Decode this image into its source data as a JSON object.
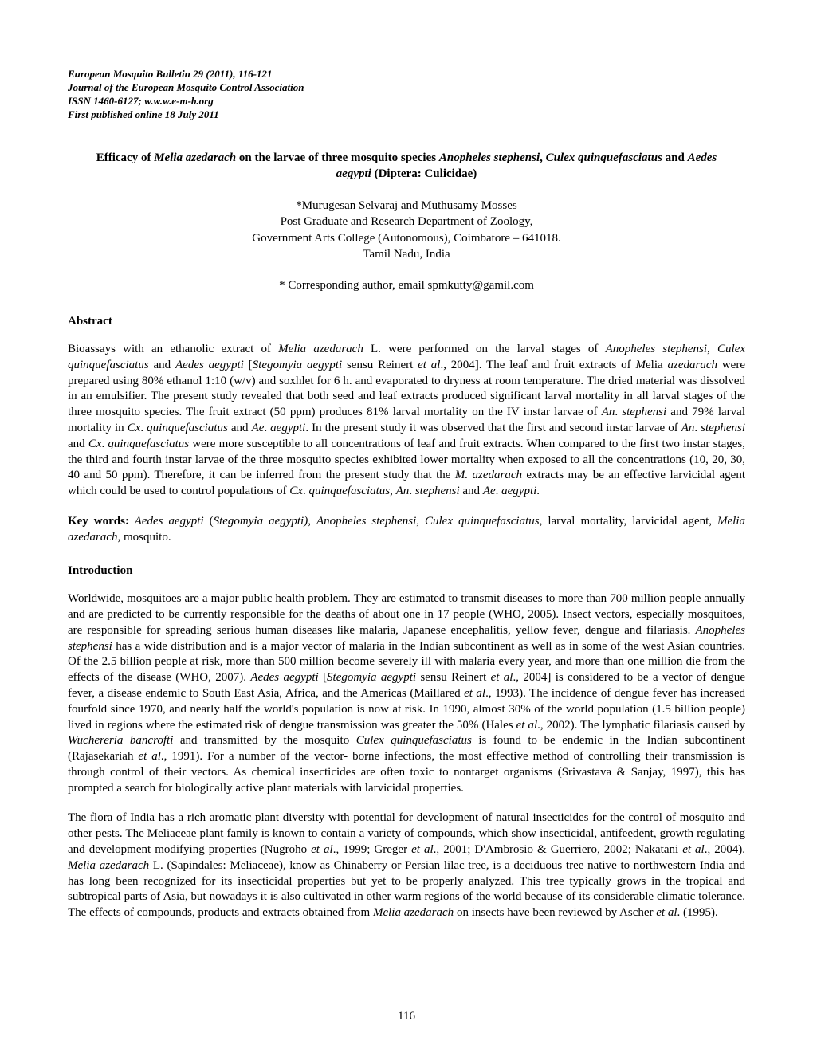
{
  "header": {
    "line1": "European Mosquito Bulletin 29 (2011), 116-121",
    "line2": "Journal of the European Mosquito Control Association",
    "line3": "ISSN 1460-6127; w.w.w.e-m-b.org",
    "line4": "First published online 18 July 2011"
  },
  "title": {
    "prefix": "Efficacy of ",
    "species1": "Melia azedarach",
    "mid1": " on the larvae of three mosquito species ",
    "species2": "Anopheles stephensi",
    "mid2": ", ",
    "species3": "Culex quinquefasciatus",
    "mid3": " and ",
    "species4": "Aedes aegypti",
    "suffix": " (Diptera: Culicidae)"
  },
  "authors": {
    "names": "*Murugesan Selvaraj and Muthusamy Mosses",
    "dept": "Post Graduate and Research Department of Zoology,",
    "college": "Government Arts College (Autonomous), Coimbatore – 641018.",
    "location": "Tamil Nadu, India"
  },
  "corresponding": "* Corresponding author, email spmkutty@gamil.com",
  "abstract": {
    "heading": "Abstract",
    "p1": "Bioassays with an ethanolic extract of ",
    "s1": "Melia azedarach",
    "p2": " L. were performed on the larval stages of ",
    "s2": "Anopheles stephensi",
    "p3": ", ",
    "s3": "Culex quinquefasciatus",
    "p4": " and ",
    "s4": "Aedes aegypti",
    "p5": " [",
    "s5": "Stegomyia aegypti",
    "p6": " sensu Reinert ",
    "s6": "et al",
    "p7": "., 2004]. The leaf and fruit extracts of ",
    "s7": "M",
    "p7a": "elia ",
    "s7a": "azedarach",
    "p8": " were prepared using 80% ethanol 1:10 (w/v) and soxhlet for 6 h. and evaporated to dryness at room temperature. The dried material was dissolved in an emulsifier. The present study revealed that both seed and leaf extracts produced significant larval mortality in all larval stages of the three mosquito species. The fruit extract (50 ppm) produces 81% larval mortality on the IV instar larvae of ",
    "s8": "An",
    "p9": ". ",
    "s9": "stephensi",
    "p10": " and 79% larval mortality in ",
    "s10": "Cx",
    "p11": ". ",
    "s11": "quinquefasciatus",
    "p12": " and ",
    "s12": "Ae",
    "p13": ". ",
    "s13": "aegypti",
    "p14": ". In the present study it was observed that the first and second instar larvae of ",
    "s14": "An",
    "p15": ". ",
    "s15": "stephensi",
    "p16": " and ",
    "s16": "Cx",
    "p17": ". ",
    "s17": "quinquefasciatus",
    "p18": " were more susceptible to all concentrations of leaf and fruit extracts. When compared to the  first two instar stages, the third and fourth instar larvae of the three mosquito species exhibited lower mortality when exposed to all the concentrations (10, 20, 30, 40 and 50 ppm). Therefore, it can be inferred from the present study that the ",
    "s18": "M. azedarach",
    "p19": " extracts may be an effective larvicidal agent which could be used to control populations of ",
    "s19": "Cx",
    "p20": ". ",
    "s20": "quinquefasciatus",
    "p21": ", ",
    "s21": "An",
    "p22": ". ",
    "s22": "stephensi",
    "p23": " and ",
    "s23": "Ae",
    "p24": ". ",
    "s24": "aegypti",
    "p25": "."
  },
  "keywords": {
    "label": "Key words:",
    "k1": " Aedes aegypti",
    "k2": " (",
    "k3": "Stegomyia aegypti)",
    "k4": ", ",
    "k5": "Anopheles stephensi",
    "k6": ", ",
    "k7": "Culex quinquefasciatus",
    "k8": ", larval mortality, larvicidal agent, ",
    "k9": "Melia azedarach,",
    "k10": " mosquito."
  },
  "introduction": {
    "heading": "Introduction",
    "para1": {
      "p1": "Worldwide, mosquitoes are a major public health problem. They are estimated to transmit diseases to more than 700 million people annually and are predicted to be currently responsible for the deaths of about one in 17 people (WHO, 2005). Insect vectors, especially mosquitoes, are responsible for spreading serious human diseases like malaria, Japanese encephalitis, yellow fever, dengue and filariasis.  ",
      "s1": "Anopheles stephensi",
      "p2": " has a wide distribution and is a major vector of malaria in the Indian subcontinent as well as in some of the west Asian countries. Of the 2.5 billion people at risk, more than 500 million become severely ill with malaria every year, and more than one million die from the effects of the disease (WHO, 2007). ",
      "s2": "Aedes  aegypti",
      "p3": " [",
      "s3": "Stegomyia aegypti",
      "p4": " sensu Reinert ",
      "s4": "et al",
      "p5": "., 2004] is considered to be a vector of dengue fever, a disease endemic to South East Asia, Africa, and the Americas (Maillared ",
      "s5": "et al",
      "p6": "., 1993). The incidence of dengue fever has increased fourfold since 1970, and nearly half the world's population is now at risk. In 1990, almost 30% of the world population (1.5 billion people) lived in regions where the estimated risk of dengue transmission was greater the 50% (Hales ",
      "s6": "et al",
      "p7": "., 2002). The lymphatic filariasis caused by ",
      "s7": "Wuchereria bancrofti",
      "p8": " and transmitted by the mosquito ",
      "s8": "Culex quinquefasciatus",
      "p9": " is found to be endemic in the Indian subcontinent (Rajasekariah ",
      "s9": "et al",
      "p10": "., 1991). For a number of the vector- borne infections, the most effective method of controlling their transmission is through control of their vectors. As chemical insecticides are often toxic to nontarget organisms (Srivastava & Sanjay, 1997), this has prompted a search for biologically active plant materials with larvicidal properties."
    },
    "para2": {
      "p1": "The flora of India has a rich aromatic plant diversity with potential for development of natural insecticides for the control of mosquito and other pests. The Meliaceae plant family is known to contain a variety of compounds, which show insecticidal, antifeedent, growth regulating and development modifying properties (Nugroho ",
      "s1": "et al",
      "p2": "., 1999; Greger ",
      "s2": "et al",
      "p3": "., 2001; D'Ambrosio & Guerriero, 2002; Nakatani ",
      "s3": "et al",
      "p4": "., 2004). ",
      "s4": "Melia azedarach",
      "p5": " L. (Sapindales:  Meliaceae), know as Chinaberry or Persian lilac tree, is a deciduous tree native to northwestern India and has long been recognized for its insecticidal properties but yet to be properly analyzed. This tree typically grows in the tropical and subtropical parts of Asia, but nowadays it is also cultivated in other warm regions of the world because of its considerable climatic tolerance. The effects of compounds, products and extracts obtained from ",
      "s5": "Melia azedarach",
      "p6": " on insects have been reviewed by Ascher ",
      "s6": "et al",
      "p7": ". (1995)."
    }
  },
  "page_number": "116"
}
